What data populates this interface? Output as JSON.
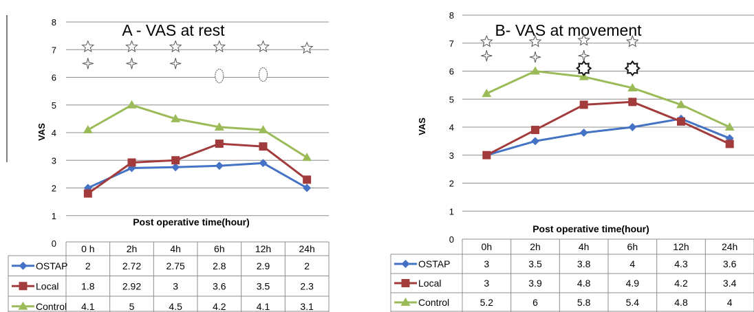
{
  "chart_data": [
    {
      "type": "line",
      "title": "A - VAS at rest",
      "xlabel": "Post operative time(hour)",
      "ylabel": "VAS",
      "ylim": [
        0,
        8
      ],
      "yticks": [
        "0",
        "1",
        "2",
        "3",
        "4",
        "5",
        "6",
        "7",
        "8"
      ],
      "categories": [
        "0 h",
        "2h",
        "4h",
        "6h",
        "12h",
        "24h"
      ],
      "grid": true,
      "legend": "data-table",
      "series": [
        {
          "name": "OSTAP",
          "color": "#4472c4",
          "marker": "diamond",
          "values": [
            2,
            2.72,
            2.75,
            2.8,
            2.9,
            2
          ],
          "labels": [
            "2",
            "2.72",
            "2.75",
            "2.8",
            "2.9",
            "2"
          ]
        },
        {
          "name": "Local",
          "color": "#a23b3b",
          "marker": "square",
          "values": [
            1.8,
            2.92,
            3,
            3.6,
            3.5,
            2.3
          ],
          "labels": [
            "1.8",
            "2.92",
            "3",
            "3.6",
            "3.5",
            "2.3"
          ]
        },
        {
          "name": "Control",
          "color": "#9bbb59",
          "marker": "triangle",
          "values": [
            4.1,
            5,
            4.5,
            4.2,
            4.1,
            3.1
          ],
          "labels": [
            "4.1",
            "5",
            "4.5",
            "4.2",
            "4.1",
            "3.1"
          ]
        }
      ],
      "annotations": [
        {
          "symbol": "star5",
          "category": 0,
          "y": 7.1
        },
        {
          "symbol": "star5",
          "category": 1,
          "y": 7.1
        },
        {
          "symbol": "star5",
          "category": 2,
          "y": 7.1
        },
        {
          "symbol": "star5",
          "category": 3,
          "y": 7.1
        },
        {
          "symbol": "star5",
          "category": 4,
          "y": 7.1
        },
        {
          "symbol": "star5",
          "category": 5,
          "y": 7.05
        },
        {
          "symbol": "star4",
          "category": 0,
          "y": 6.5
        },
        {
          "symbol": "star4",
          "category": 1,
          "y": 6.5
        },
        {
          "symbol": "star4",
          "category": 2,
          "y": 6.5
        },
        {
          "symbol": "oval",
          "category": 3,
          "y": 6.05
        },
        {
          "symbol": "oval",
          "category": 4,
          "y": 6.1
        }
      ]
    },
    {
      "type": "line",
      "title": "B- VAS at movement",
      "xlabel": "Post operative time(hour)",
      "ylabel": "VAS",
      "ylim": [
        0,
        8
      ],
      "yticks": [
        "0",
        "1",
        "2",
        "3",
        "4",
        "5",
        "6",
        "7",
        "8"
      ],
      "categories": [
        "0h",
        "2h",
        "4h",
        "6h",
        "12h",
        "24h"
      ],
      "grid": true,
      "legend": "data-table",
      "series": [
        {
          "name": "OSTAP",
          "color": "#4472c4",
          "marker": "diamond",
          "values": [
            3,
            3.5,
            3.8,
            4,
            4.3,
            3.6
          ],
          "labels": [
            "3",
            "3.5",
            "3.8",
            "4",
            "4.3",
            "3.6"
          ]
        },
        {
          "name": "Local",
          "color": "#a23b3b",
          "marker": "square",
          "values": [
            3,
            3.9,
            4.8,
            4.9,
            4.2,
            3.4
          ],
          "labels": [
            "3",
            "3.9",
            "4.8",
            "4.9",
            "4.2",
            "3.4"
          ]
        },
        {
          "name": "Control",
          "color": "#9bbb59",
          "marker": "triangle",
          "values": [
            5.2,
            6,
            5.8,
            5.4,
            4.8,
            4
          ],
          "labels": [
            "5.2",
            "6",
            "5.8",
            "5.4",
            "4.8",
            "4"
          ]
        }
      ],
      "annotations": [
        {
          "symbol": "star5",
          "category": 0,
          "y": 7.05
        },
        {
          "symbol": "star5",
          "category": 1,
          "y": 7.05
        },
        {
          "symbol": "star5",
          "category": 2,
          "y": 7.1
        },
        {
          "symbol": "star5",
          "category": 3,
          "y": 7.05
        },
        {
          "symbol": "star4",
          "category": 0,
          "y": 6.55
        },
        {
          "symbol": "star4",
          "category": 1,
          "y": 6.5
        },
        {
          "symbol": "star4",
          "category": 2,
          "y": 6.55
        },
        {
          "symbol": "burst",
          "category": 2,
          "y": 6.1
        },
        {
          "symbol": "burst",
          "category": 3,
          "y": 6.1
        }
      ]
    }
  ]
}
